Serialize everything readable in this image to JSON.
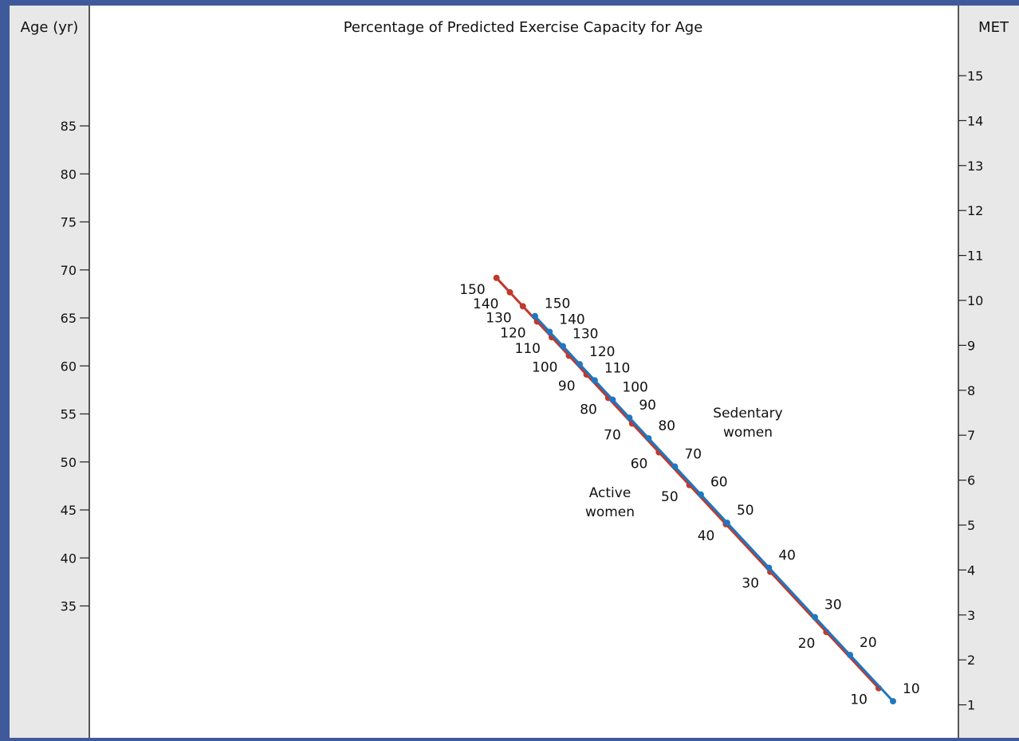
{
  "chart_data": {
    "type": "line",
    "title": "Percentage of Predicted Exercise Capacity for Age",
    "left_axis": {
      "label": "Age (yr)",
      "ticks": [
        85,
        80,
        75,
        70,
        65,
        60,
        55,
        50,
        45,
        40,
        35
      ]
    },
    "right_axis": {
      "label": "MET",
      "ticks": [
        15,
        14,
        13,
        12,
        11,
        10,
        9,
        8,
        7,
        6,
        5,
        4,
        3,
        2,
        1
      ]
    },
    "grid": false,
    "series": [
      {
        "name": "Active women",
        "color": "#c0392b",
        "points": [
          {
            "label": "150",
            "met": 10.5
          },
          {
            "label": "140",
            "met": 10.18
          },
          {
            "label": "130",
            "met": 9.87
          },
          {
            "label": "120",
            "met": 9.53
          },
          {
            "label": "110",
            "met": 9.18
          },
          {
            "label": "100",
            "met": 8.77
          },
          {
            "label": "90",
            "met": 8.35
          },
          {
            "label": "80",
            "met": 7.83
          },
          {
            "label": "70",
            "met": 7.26
          },
          {
            "label": "60",
            "met": 6.62
          },
          {
            "label": "50",
            "met": 5.89
          },
          {
            "label": "40",
            "met": 5.02
          },
          {
            "label": "30",
            "met": 3.96
          },
          {
            "label": "20",
            "met": 2.62
          },
          {
            "label": "10",
            "met": 1.37
          }
        ]
      },
      {
        "name": "Sedentary women",
        "color": "#1f77c0",
        "points": [
          {
            "label": "150",
            "met": 9.65
          },
          {
            "label": "140",
            "met": 9.3
          },
          {
            "label": "130",
            "met": 8.98
          },
          {
            "label": "120",
            "met": 8.58
          },
          {
            "label": "110",
            "met": 8.22
          },
          {
            "label": "100",
            "met": 7.79
          },
          {
            "label": "90",
            "met": 7.39
          },
          {
            "label": "80",
            "met": 6.93
          },
          {
            "label": "70",
            "met": 6.3
          },
          {
            "label": "60",
            "met": 5.68
          },
          {
            "label": "50",
            "met": 5.05
          },
          {
            "label": "40",
            "met": 4.05
          },
          {
            "label": "30",
            "met": 2.95
          },
          {
            "label": "20",
            "met": 2.11
          },
          {
            "label": "10",
            "met": 1.08
          }
        ]
      }
    ],
    "series_labels": [
      {
        "series": 0,
        "lines": [
          "Active",
          "women"
        ]
      },
      {
        "series": 1,
        "lines": [
          "Sedentary",
          "women"
        ]
      }
    ]
  }
}
